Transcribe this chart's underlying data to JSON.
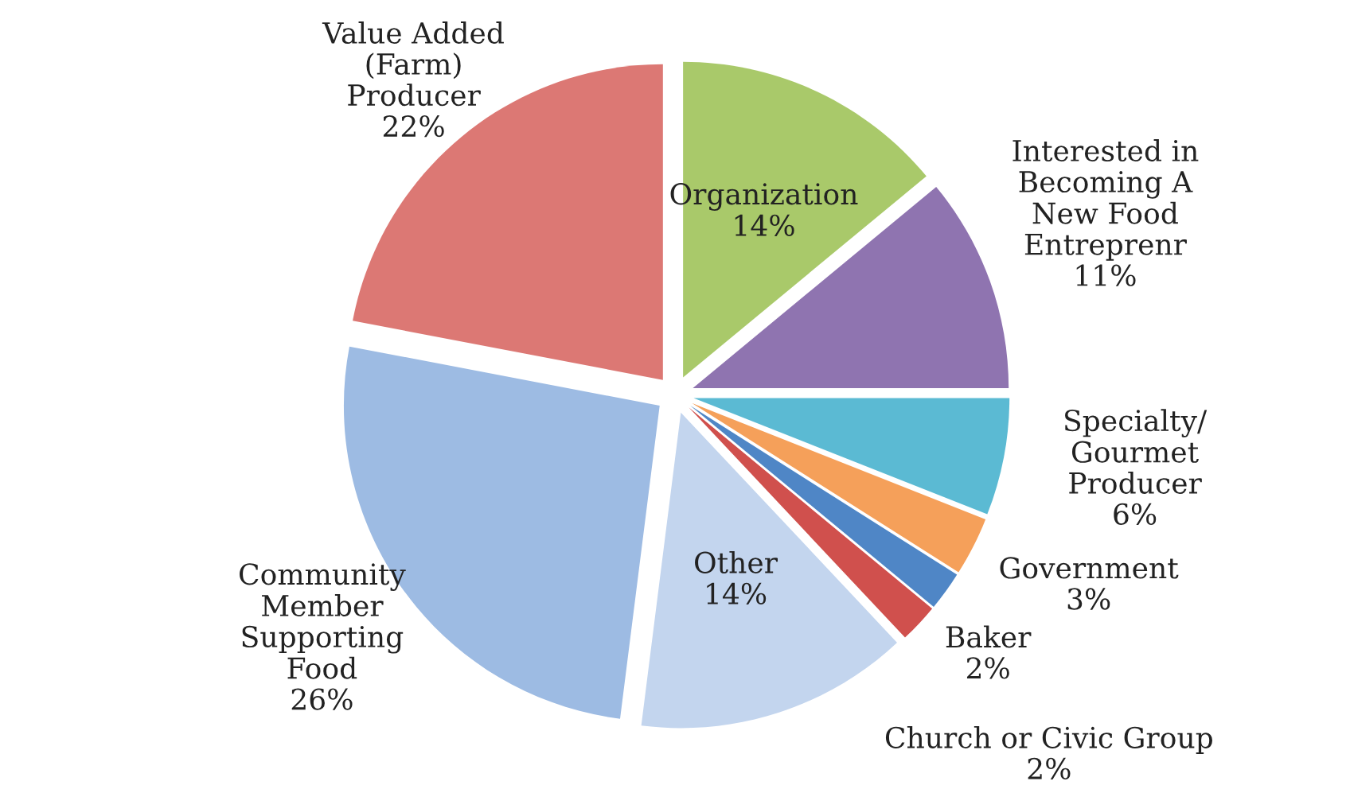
{
  "chart_data": {
    "type": "pie",
    "categories": [
      "Organization",
      "Interested in\nBecoming A\nNew Food\nEntreprenr",
      "Specialty/\nGourmet\nProducer",
      "Government",
      "Baker",
      "Church or Civic Group",
      "Other",
      "Community\nMember\nSupporting\nFood",
      "Value Added\n(Farm)\nProducer"
    ],
    "values": [
      14,
      11,
      6,
      3,
      2,
      2,
      14,
      26,
      22
    ],
    "colors": [
      "#a9c96a",
      "#8f74b0",
      "#5bbad3",
      "#f5a05a",
      "#4f86c6",
      "#d0504d",
      "#c3d5ee",
      "#9dbbe3",
      "#dc7874"
    ],
    "value_labels": [
      "14%",
      "11%",
      "6%",
      "3%",
      "2%",
      "2%",
      "14%",
      "26%",
      "22%"
    ]
  }
}
